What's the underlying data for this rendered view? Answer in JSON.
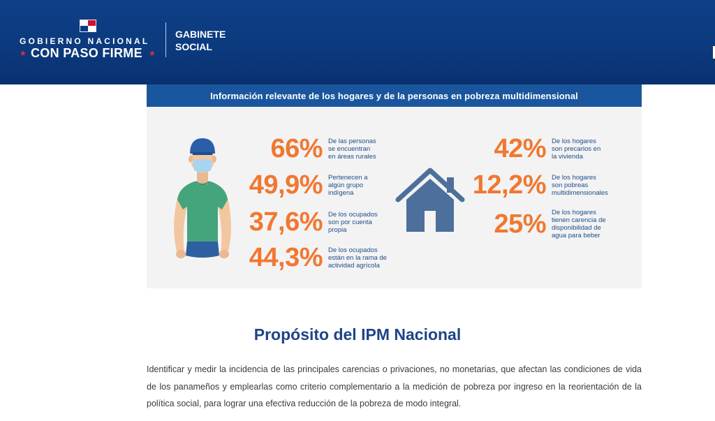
{
  "header": {
    "logo_line1": "GOBIERNO NACIONAL",
    "logo_line2": "CON PASO FIRME",
    "star_glyph": "★",
    "unit_line1": "GABINETE",
    "unit_line2": "SOCIAL"
  },
  "infographic": {
    "title": "Información relevante de los hogares y de la personas en pobreza multidimensional",
    "person_stats": [
      {
        "value": "66%",
        "line1": "De las personas",
        "line2": "se encuentran",
        "line3": "en áreas rurales"
      },
      {
        "value": "49,9%",
        "line1": "Pertenecen a",
        "line2": "algún grupo",
        "line3": "indígena"
      },
      {
        "value": "37,6%",
        "line1": "De los ocupados",
        "line2": "son por cuenta",
        "line3": "propia"
      },
      {
        "value": "44,3%",
        "line1": "De los ocupados",
        "line2": "están en la rama de",
        "line3": "actividad agrícola"
      }
    ],
    "household_stats": [
      {
        "value": "42%",
        "line1": "De los hogares",
        "line2": "son precarios en",
        "line3": "la vivienda"
      },
      {
        "value": "12,2%",
        "line1": "De los hogares",
        "line2": "son pobreas",
        "line3": "multidimensionales"
      },
      {
        "value": "25%",
        "line1": "De los hogares",
        "line2": "tienen carencia de",
        "line3": "disponibilidad de",
        "line4": "agua para beber"
      }
    ],
    "icons": {
      "person": "person-with-mask-icon",
      "house": "house-icon"
    },
    "colors": {
      "accent": "#f07830",
      "title_bar": "#1a569e",
      "panel": "#f3f3f4",
      "text": "#1e4c86"
    }
  },
  "section": {
    "title": "Propósito del IPM Nacional",
    "body": "Identificar y medir la incidencia de las principales carencias o privaciones, no monetarias, que afectan las condiciones de vida de los panameños y emplearlas como criterio complementario a la medición de pobreza por ingreso en la reorientación de la política social, para lograr una efectiva reducción de la pobreza de modo integral."
  }
}
